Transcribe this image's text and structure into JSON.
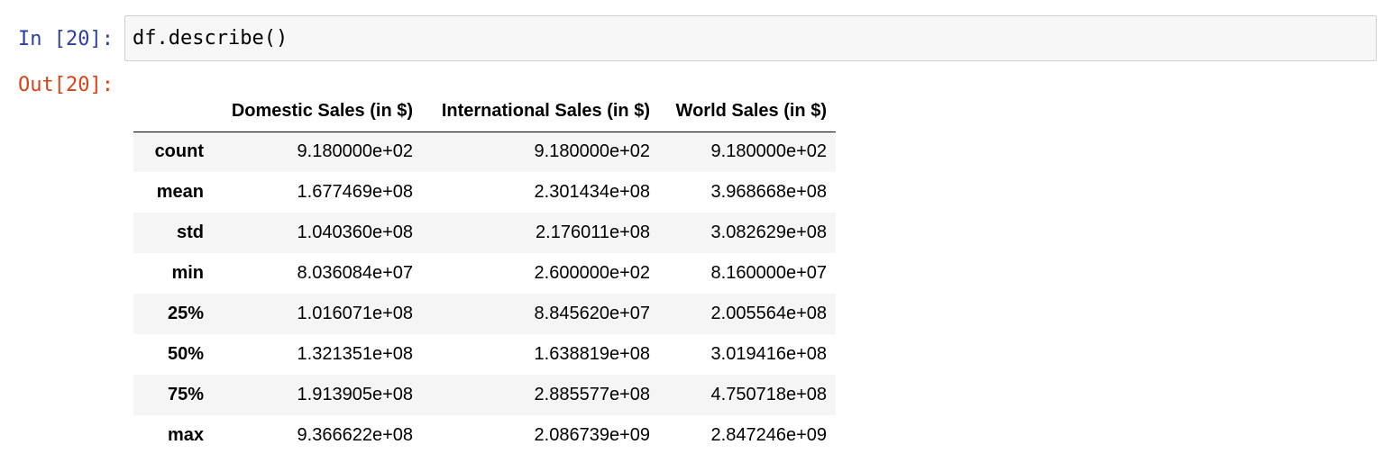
{
  "cell": {
    "in_prompt": "In [20]:",
    "out_prompt": "Out[20]:",
    "code": "df.describe()"
  },
  "table": {
    "columns": [
      "",
      "Domestic Sales (in $)",
      "International Sales (in $)",
      "World Sales (in $)"
    ],
    "rows": [
      {
        "label": "count",
        "values": [
          "9.180000e+02",
          "9.180000e+02",
          "9.180000e+02"
        ]
      },
      {
        "label": "mean",
        "values": [
          "1.677469e+08",
          "2.301434e+08",
          "3.968668e+08"
        ]
      },
      {
        "label": "std",
        "values": [
          "1.040360e+08",
          "2.176011e+08",
          "3.082629e+08"
        ]
      },
      {
        "label": "min",
        "values": [
          "8.036084e+07",
          "2.600000e+02",
          "8.160000e+07"
        ]
      },
      {
        "label": "25%",
        "values": [
          "1.016071e+08",
          "8.845620e+07",
          "2.005564e+08"
        ]
      },
      {
        "label": "50%",
        "values": [
          "1.321351e+08",
          "1.638819e+08",
          "3.019416e+08"
        ]
      },
      {
        "label": "75%",
        "values": [
          "1.913905e+08",
          "2.885577e+08",
          "4.750718e+08"
        ]
      },
      {
        "label": "max",
        "values": [
          "9.366622e+08",
          "2.086739e+09",
          "2.847246e+09"
        ]
      }
    ]
  }
}
